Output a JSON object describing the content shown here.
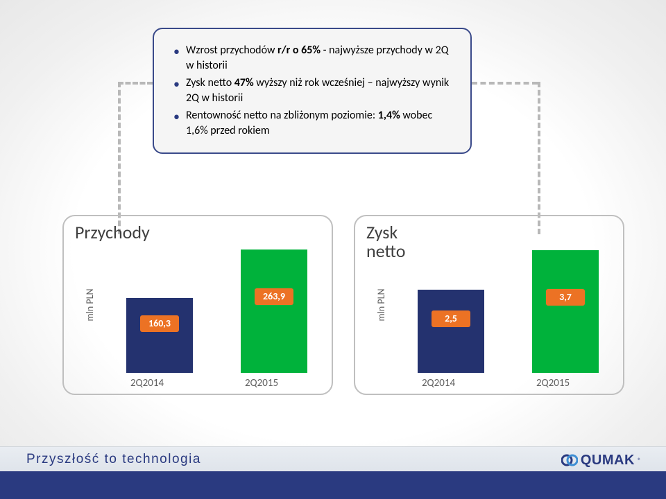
{
  "card": {
    "bullets": [
      "Wzrost przychodów <b>r/r o 65%</b> - najwyższe przychody w 2Q w historii",
      "Zysk netto <b>47%</b> wyższy niż rok wcześniej – najwyższy wynik 2Q w historii",
      "Rentowność netto na zbliżonym poziomie: <b>1,4%</b> wobec 1,6% przed rokiem"
    ],
    "border_color": "#3a4a8a",
    "bg_color": "#f5f5f5"
  },
  "charts": {
    "left": {
      "title": "Przychody",
      "ylabel": "mln PLN",
      "categories": [
        "2Q2014",
        "2Q2015"
      ],
      "values": [
        160.3,
        263.9
      ],
      "value_labels": [
        "160,3",
        "263,9"
      ],
      "bar_colors": [
        "#24326f",
        "#00b23b"
      ],
      "label_colors": [
        "#ec7224",
        "#ec7224"
      ],
      "ymax": 270,
      "frame_border": "#bfbfbf"
    },
    "right": {
      "title": "Zysk\nnetto",
      "ylabel": "mln PLN",
      "categories": [
        "2Q2014",
        "2Q2015"
      ],
      "values": [
        2.5,
        3.7
      ],
      "value_labels": [
        "2,5",
        "3,7"
      ],
      "bar_colors": [
        "#24326f",
        "#00b23b"
      ],
      "label_colors": [
        "#ec7224",
        "#ec7224"
      ],
      "ymax": 3.8,
      "frame_border": "#bfbfbf"
    }
  },
  "footer": {
    "tagline": "Przyszłość to technologia",
    "brand": "QUMAK",
    "tagline_color": "#2a3a80",
    "band_bg": "#e3e8ee",
    "accent_bg": "#2a3a80"
  },
  "connectors": {
    "dash_color": "#b8b8b8",
    "dash_width": 4
  }
}
